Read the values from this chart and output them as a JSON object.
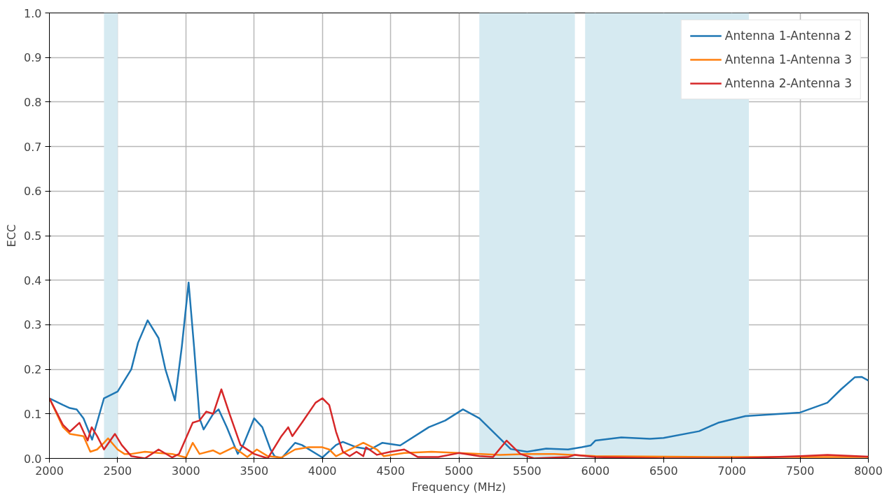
{
  "chart_data": {
    "type": "line",
    "xlabel": "Frequency (MHz)",
    "ylabel": "ECC",
    "xlim": [
      2000,
      8000
    ],
    "ylim": [
      0,
      1.0
    ],
    "xticks": [
      2000,
      2500,
      3000,
      3500,
      4000,
      4500,
      5000,
      5500,
      6000,
      6500,
      7000,
      7500,
      8000
    ],
    "yticks": [
      {
        "value": 0,
        "label": "0.0"
      },
      0.1,
      0.2,
      0.3,
      0.4,
      0.5,
      0.6,
      0.7,
      0.8,
      0.9,
      {
        "value": 1,
        "label": "1.0"
      }
    ],
    "grid": true,
    "legend": "top right",
    "marker": "none",
    "line_style": "solid",
    "bands": [
      {
        "axis": "x",
        "from": 2400,
        "to": 2500,
        "color": "#d6eaf1"
      },
      {
        "axis": "x",
        "from": 5150,
        "to": 5850,
        "color": "#d6eaf1"
      },
      {
        "axis": "x",
        "from": 5925,
        "to": 7125,
        "color": "#d6eaf1"
      }
    ],
    "series": [
      {
        "name": "Antenna 1-Antenna 2",
        "color": "#1f77b4",
        "x": [
          2000,
          2100,
          2150,
          2200,
          2250,
          2313,
          2400,
          2500,
          2600,
          2650,
          2720,
          2800,
          2850,
          2920,
          2970,
          3020,
          3060,
          3100,
          3130,
          3200,
          3240,
          3300,
          3380,
          3420,
          3500,
          3560,
          3620,
          3650,
          3700,
          3800,
          3850,
          4000,
          4100,
          4150,
          4250,
          4350,
          4440,
          4570,
          4780,
          4900,
          5030,
          5150,
          5300,
          5380,
          5500,
          5640,
          5800,
          5900,
          5965,
          6000,
          6190,
          6400,
          6500,
          6760,
          6900,
          7100,
          7500,
          7700,
          7800,
          7900,
          7950,
          8000
        ],
        "values": [
          0.135,
          0.12,
          0.113,
          0.11,
          0.09,
          0.042,
          0.135,
          0.15,
          0.2,
          0.26,
          0.31,
          0.27,
          0.2,
          0.13,
          0.25,
          0.395,
          0.25,
          0.09,
          0.065,
          0.1,
          0.11,
          0.07,
          0.01,
          0.03,
          0.09,
          0.07,
          0.02,
          0.005,
          0.0,
          0.035,
          0.03,
          0.002,
          0.03,
          0.037,
          0.025,
          0.02,
          0.035,
          0.029,
          0.07,
          0.085,
          0.11,
          0.09,
          0.045,
          0.021,
          0.015,
          0.022,
          0.02,
          0.025,
          0.029,
          0.04,
          0.047,
          0.044,
          0.046,
          0.061,
          0.08,
          0.095,
          0.103,
          0.125,
          0.155,
          0.182,
          0.183,
          0.175
        ]
      },
      {
        "name": "Antenna 1-Antenna 3",
        "color": "#ff7f0e",
        "x": [
          2000,
          2100,
          2150,
          2250,
          2300,
          2350,
          2400,
          2430,
          2500,
          2550,
          2600,
          2700,
          2800,
          2900,
          3000,
          3050,
          3100,
          3200,
          3250,
          3350,
          3450,
          3520,
          3600,
          3700,
          3800,
          3900,
          4000,
          4050,
          4100,
          4200,
          4300,
          4400,
          4450,
          4600,
          4800,
          5000,
          5300,
          5500,
          5700,
          6000,
          7000,
          8000
        ],
        "values": [
          0.135,
          0.07,
          0.055,
          0.05,
          0.015,
          0.02,
          0.035,
          0.045,
          0.02,
          0.01,
          0.01,
          0.015,
          0.012,
          0.01,
          0.002,
          0.035,
          0.01,
          0.018,
          0.01,
          0.025,
          0.003,
          0.02,
          0.005,
          0.002,
          0.02,
          0.025,
          0.025,
          0.02,
          0.005,
          0.02,
          0.035,
          0.02,
          0.005,
          0.012,
          0.015,
          0.012,
          0.008,
          0.01,
          0.01,
          0.005,
          0.003,
          0.003
        ]
      },
      {
        "name": "Antenna 2-Antenna 3",
        "color": "#d62728",
        "x": [
          2000,
          2100,
          2150,
          2220,
          2280,
          2310,
          2350,
          2400,
          2480,
          2530,
          2600,
          2700,
          2800,
          2900,
          2950,
          3050,
          3100,
          3150,
          3200,
          3260,
          3320,
          3400,
          3500,
          3600,
          3700,
          3750,
          3780,
          3850,
          3950,
          4000,
          4050,
          4100,
          4150,
          4200,
          4250,
          4300,
          4320,
          4400,
          4500,
          4600,
          4700,
          4850,
          5000,
          5150,
          5250,
          5350,
          5450,
          5550,
          5800,
          5850,
          6000,
          6200,
          6500,
          7000,
          7500,
          7700,
          8000
        ],
        "values": [
          0.135,
          0.075,
          0.06,
          0.08,
          0.04,
          0.07,
          0.05,
          0.02,
          0.055,
          0.03,
          0.005,
          0.0,
          0.02,
          0.002,
          0.01,
          0.08,
          0.085,
          0.105,
          0.1,
          0.155,
          0.1,
          0.03,
          0.01,
          0.0,
          0.05,
          0.07,
          0.05,
          0.08,
          0.125,
          0.135,
          0.12,
          0.06,
          0.015,
          0.005,
          0.015,
          0.005,
          0.025,
          0.008,
          0.015,
          0.02,
          0.003,
          0.003,
          0.012,
          0.005,
          0.003,
          0.04,
          0.01,
          0.0,
          0.003,
          0.008,
          0.003,
          0.002,
          0.0,
          0.0,
          0.005,
          0.008,
          0.004
        ]
      }
    ]
  }
}
